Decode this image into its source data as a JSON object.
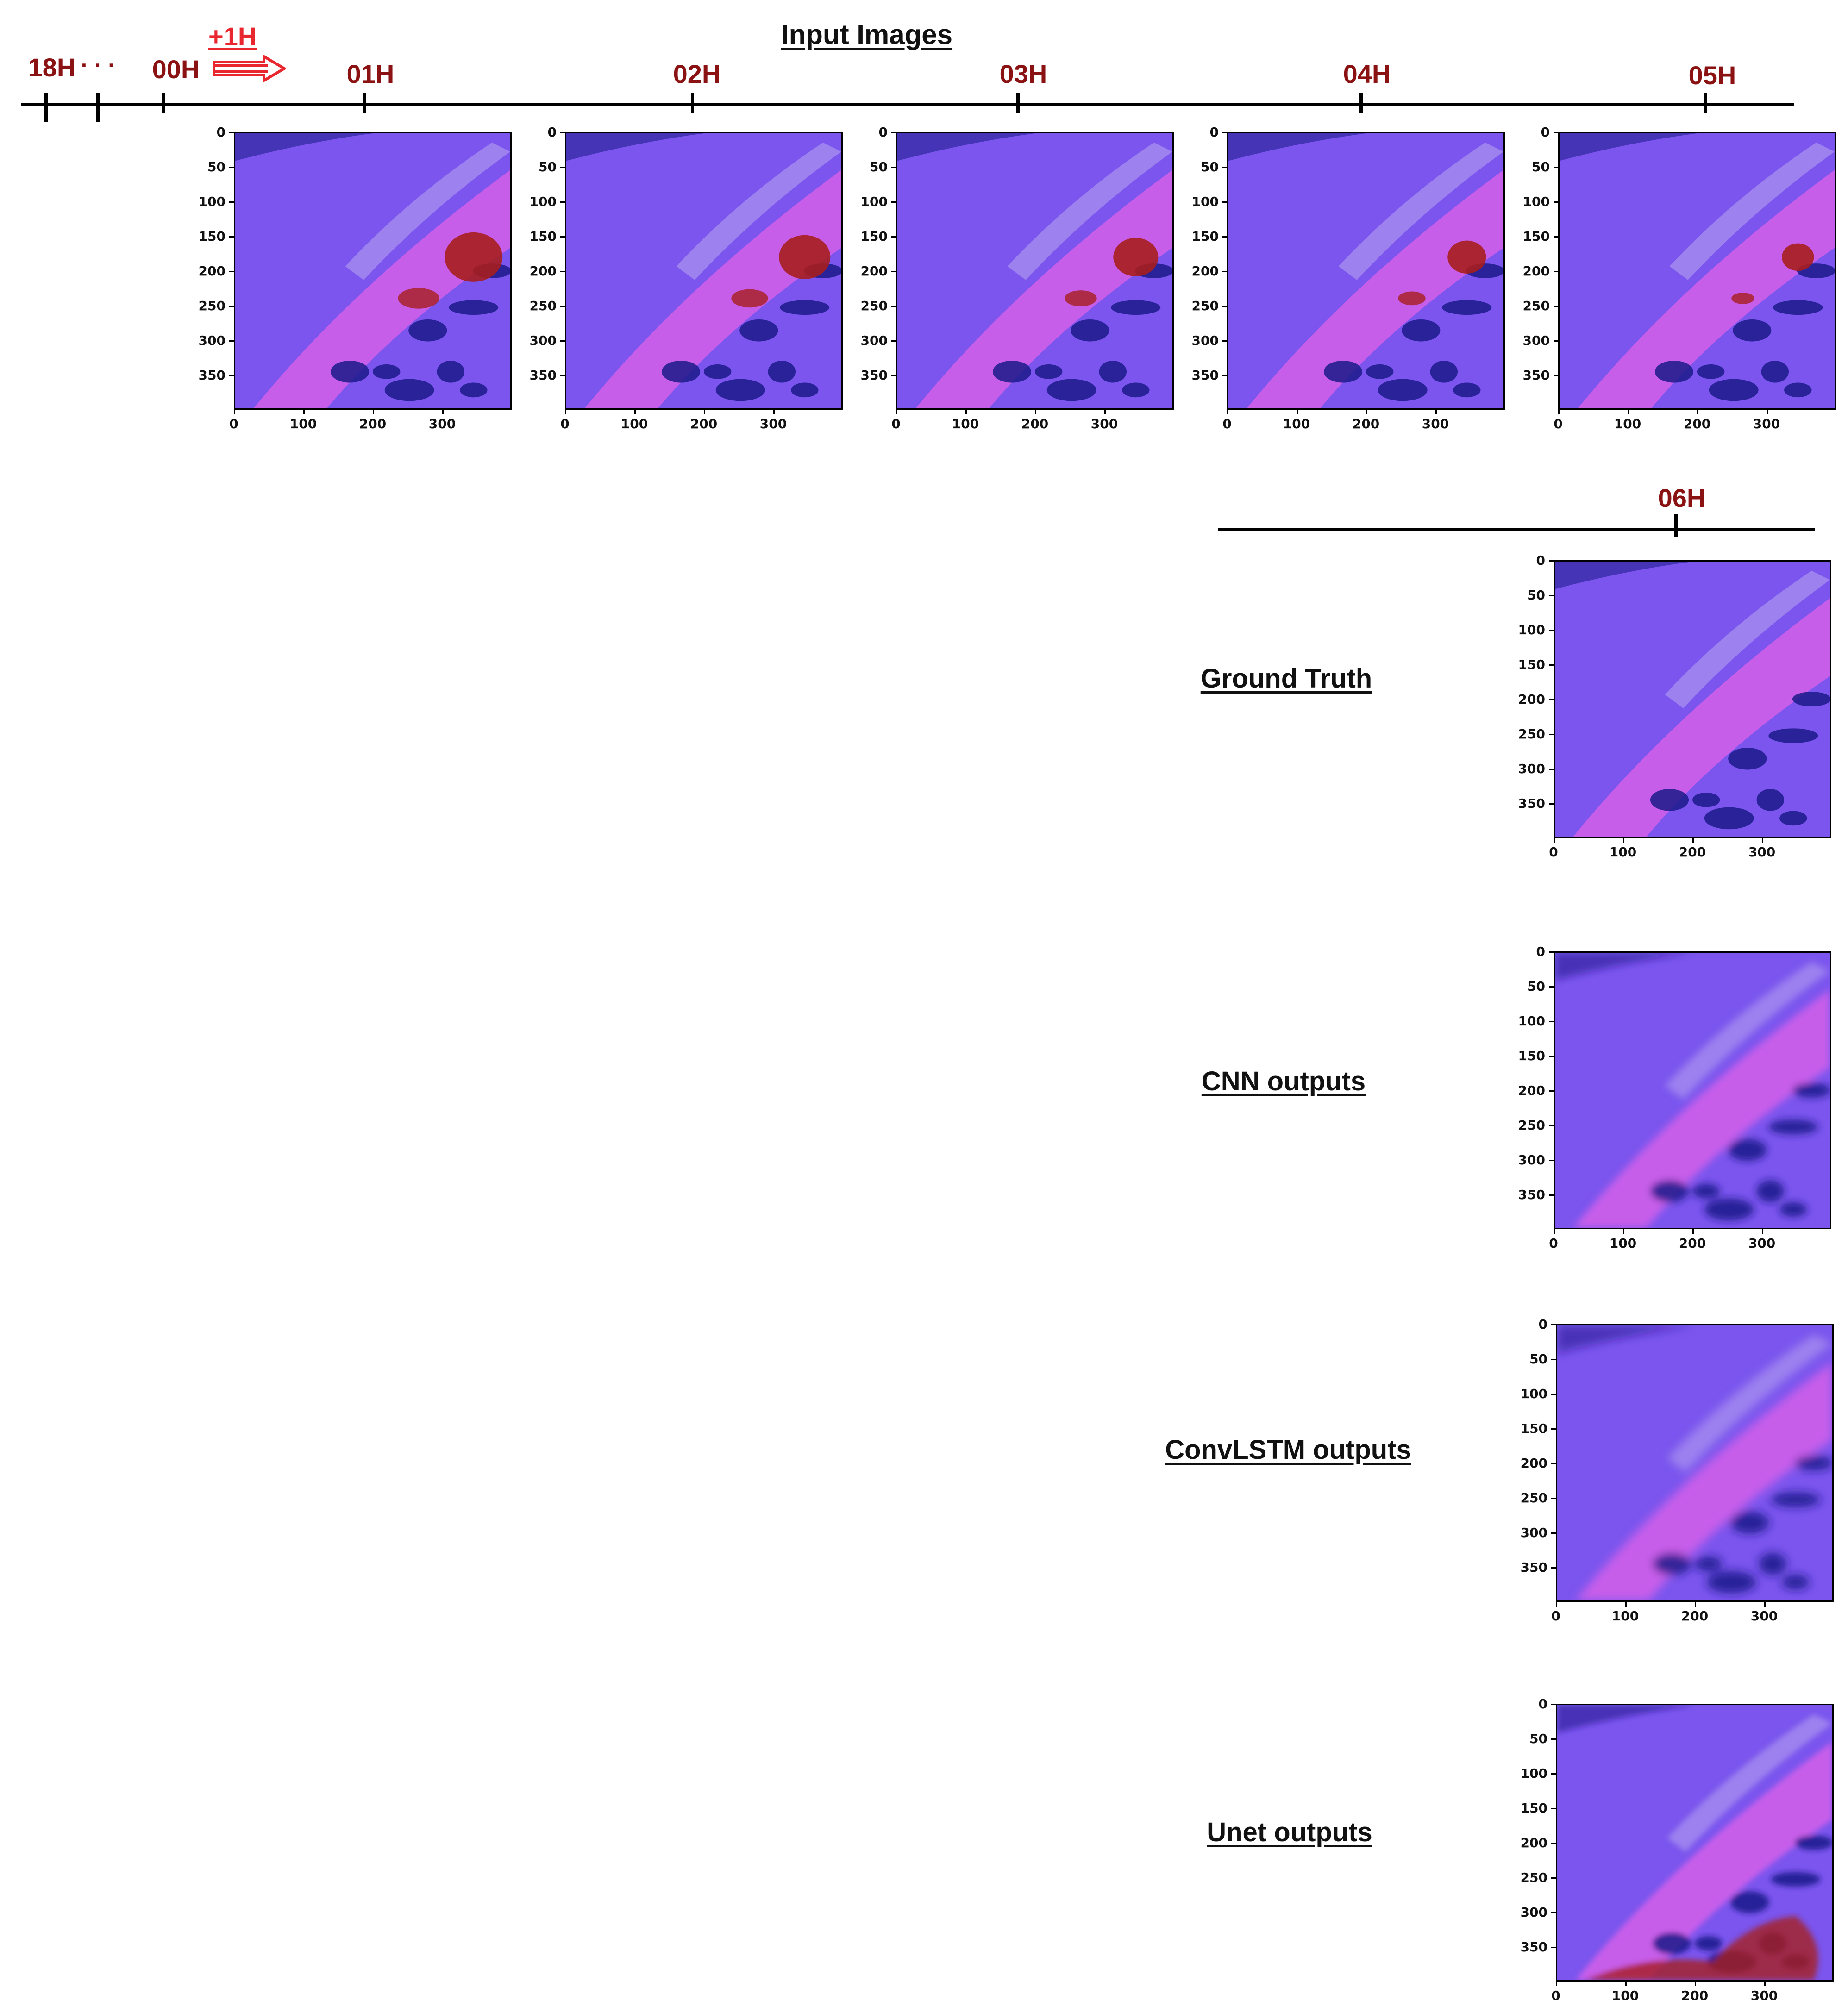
{
  "header": {
    "title": "Input Images",
    "step_label": "+1H"
  },
  "timeline_top": {
    "pre_labels": [
      "18H",
      "· · ·",
      "00H"
    ],
    "hours": [
      "01H",
      "02H",
      "03H",
      "04H",
      "05H"
    ]
  },
  "timeline_bottom": {
    "hour": "06H"
  },
  "axes": {
    "y_ticks": [
      "0",
      "50",
      "100",
      "150",
      "200",
      "250",
      "300",
      "350"
    ],
    "x_ticks": [
      "0",
      "100",
      "200",
      "300"
    ]
  },
  "rows": [
    {
      "label": "Ground Truth"
    },
    {
      "label": "CNN outputs"
    },
    {
      "label": "ConvLSTM outputs"
    },
    {
      "label": "Unet outputs"
    }
  ],
  "colors": {
    "hour_label": "#8b1212",
    "arrow": "#e8272f",
    "image_base": "#7b55ee",
    "image_pink": "#e062e8",
    "storm_red": "#a61e1e",
    "storm_blue": "#1b1a8a"
  }
}
